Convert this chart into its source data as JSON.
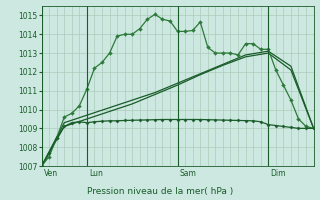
{
  "title": "Pression niveau de la mer( hPa )",
  "bg_color": "#cce8e0",
  "grid_color": "#aaccbb",
  "line_color_dark": "#1a5c2a",
  "line_color_medium": "#2d7a3a",
  "ylim": [
    1007,
    1015.5
  ],
  "yticks": [
    1007,
    1008,
    1009,
    1010,
    1011,
    1012,
    1013,
    1014,
    1015
  ],
  "day_labels": [
    "Ven",
    "Lun",
    "Sam",
    "Dim"
  ],
  "day_positions": [
    0,
    12,
    36,
    60
  ],
  "total_points": 72,
  "line1_x": [
    0,
    2,
    4,
    6,
    8,
    10,
    12,
    14,
    16,
    18,
    20,
    22,
    24,
    26,
    28,
    30,
    32,
    34,
    36,
    38,
    40,
    42,
    44,
    46,
    48,
    50,
    52,
    54,
    56,
    58,
    60,
    62,
    64,
    66,
    68,
    70,
    72
  ],
  "line1_y": [
    1007.0,
    1007.5,
    1008.5,
    1009.6,
    1009.8,
    1010.2,
    1011.1,
    1012.2,
    1012.5,
    1013.0,
    1013.9,
    1014.0,
    1014.0,
    1014.3,
    1014.8,
    1015.05,
    1014.8,
    1014.7,
    1014.15,
    1014.15,
    1014.2,
    1014.65,
    1013.3,
    1013.0,
    1013.0,
    1013.0,
    1012.9,
    1013.5,
    1013.5,
    1013.2,
    1013.2,
    1012.1,
    1011.3,
    1010.5,
    1009.5,
    1009.1,
    1009.0
  ],
  "line2_x": [
    0,
    6,
    12,
    18,
    24,
    30,
    36,
    42,
    48,
    54,
    60,
    66,
    72
  ],
  "line2_y": [
    1007.0,
    1009.3,
    1009.7,
    1010.1,
    1010.5,
    1010.9,
    1011.4,
    1011.9,
    1012.4,
    1012.9,
    1013.1,
    1012.3,
    1009.0
  ],
  "line3_x": [
    0,
    6,
    12,
    18,
    24,
    30,
    36,
    42,
    48,
    54,
    60,
    66,
    72
  ],
  "line3_y": [
    1007.0,
    1009.1,
    1009.5,
    1009.9,
    1010.3,
    1010.8,
    1011.3,
    1011.85,
    1012.35,
    1012.8,
    1013.0,
    1012.1,
    1009.0
  ],
  "line4_x": [
    0,
    2,
    4,
    6,
    8,
    10,
    12,
    14,
    16,
    18,
    20,
    22,
    24,
    26,
    28,
    30,
    32,
    34,
    36,
    38,
    40,
    42,
    44,
    46,
    48,
    50,
    52,
    54,
    56,
    58,
    60,
    62,
    64,
    66,
    68,
    70,
    72
  ],
  "line4_y": [
    1007.0,
    1007.7,
    1008.5,
    1009.1,
    1009.3,
    1009.35,
    1009.3,
    1009.35,
    1009.38,
    1009.4,
    1009.4,
    1009.42,
    1009.43,
    1009.44,
    1009.45,
    1009.46,
    1009.47,
    1009.47,
    1009.47,
    1009.47,
    1009.47,
    1009.47,
    1009.46,
    1009.45,
    1009.44,
    1009.43,
    1009.42,
    1009.41,
    1009.4,
    1009.35,
    1009.2,
    1009.15,
    1009.1,
    1009.05,
    1009.0,
    1009.0,
    1009.0
  ]
}
